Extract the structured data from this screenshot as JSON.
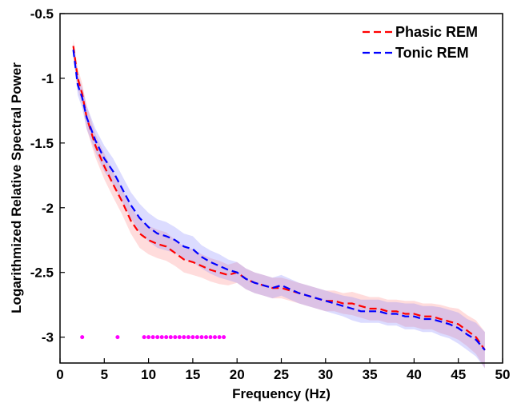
{
  "chart_data": {
    "type": "line",
    "title": "",
    "xlabel": "Frequency (Hz)",
    "ylabel": "Logarithmized Relative Spectral Power",
    "xlim": [
      0,
      50
    ],
    "ylim": [
      -3.2,
      -0.5
    ],
    "xticks": [
      "0",
      "5",
      "10",
      "15",
      "20",
      "25",
      "30",
      "35",
      "40",
      "45",
      "50"
    ],
    "yticks": [
      "-0.5",
      "-1",
      "-1.5",
      "-2",
      "-2.5",
      "-3"
    ],
    "grid": false,
    "legend_position": "top-right",
    "series": [
      {
        "name": "Phasic REM",
        "color": "#ff0000",
        "band_color": "#ff8080",
        "x": [
          1.5,
          2,
          2.5,
          3,
          4,
          5,
          6,
          7,
          8,
          9,
          10,
          11,
          12,
          13,
          14,
          15,
          16,
          17,
          18,
          19,
          20,
          21,
          22,
          23,
          24,
          25,
          26,
          27,
          28,
          29,
          30,
          31,
          32,
          33,
          34,
          35,
          36,
          37,
          38,
          39,
          40,
          41,
          42,
          43,
          44,
          45,
          46,
          47,
          48
        ],
        "y": [
          -0.75,
          -1.0,
          -1.12,
          -1.3,
          -1.52,
          -1.68,
          -1.82,
          -1.95,
          -2.1,
          -2.2,
          -2.25,
          -2.28,
          -2.3,
          -2.35,
          -2.4,
          -2.42,
          -2.45,
          -2.48,
          -2.5,
          -2.52,
          -2.5,
          -2.55,
          -2.58,
          -2.6,
          -2.62,
          -2.62,
          -2.64,
          -2.66,
          -2.68,
          -2.7,
          -2.72,
          -2.72,
          -2.74,
          -2.74,
          -2.76,
          -2.78,
          -2.78,
          -2.8,
          -2.8,
          -2.82,
          -2.82,
          -2.84,
          -2.84,
          -2.86,
          -2.88,
          -2.9,
          -2.95,
          -3.0,
          -3.1
        ],
        "band": [
          0.05,
          0.08,
          0.08,
          0.09,
          0.09,
          0.1,
          0.1,
          0.1,
          0.1,
          0.11,
          0.11,
          0.11,
          0.11,
          0.1,
          0.1,
          0.1,
          0.09,
          0.09,
          0.09,
          0.08,
          0.08,
          0.08,
          0.08,
          0.08,
          0.08,
          0.08,
          0.08,
          0.08,
          0.08,
          0.08,
          0.08,
          0.08,
          0.08,
          0.09,
          0.09,
          0.09,
          0.09,
          0.09,
          0.09,
          0.1,
          0.1,
          0.1,
          0.1,
          0.11,
          0.11,
          0.12,
          0.12,
          0.13,
          0.14
        ]
      },
      {
        "name": "Tonic REM",
        "color": "#0000ff",
        "band_color": "#8080ff",
        "x": [
          1.5,
          2,
          2.5,
          3,
          4,
          5,
          6,
          7,
          8,
          9,
          10,
          11,
          12,
          13,
          14,
          15,
          16,
          17,
          18,
          19,
          20,
          21,
          22,
          23,
          24,
          25,
          26,
          27,
          28,
          29,
          30,
          31,
          32,
          33,
          34,
          35,
          36,
          37,
          38,
          39,
          40,
          41,
          42,
          43,
          44,
          45,
          46,
          47,
          48
        ],
        "y": [
          -0.78,
          -1.05,
          -1.15,
          -1.3,
          -1.48,
          -1.62,
          -1.72,
          -1.85,
          -1.98,
          -2.08,
          -2.15,
          -2.2,
          -2.22,
          -2.25,
          -2.3,
          -2.32,
          -2.38,
          -2.42,
          -2.45,
          -2.48,
          -2.5,
          -2.55,
          -2.58,
          -2.6,
          -2.62,
          -2.6,
          -2.63,
          -2.66,
          -2.68,
          -2.7,
          -2.72,
          -2.74,
          -2.76,
          -2.78,
          -2.8,
          -2.8,
          -2.8,
          -2.82,
          -2.82,
          -2.84,
          -2.84,
          -2.86,
          -2.86,
          -2.88,
          -2.9,
          -2.93,
          -2.98,
          -3.02,
          -3.1
        ],
        "band": [
          0.05,
          0.08,
          0.08,
          0.09,
          0.09,
          0.1,
          0.1,
          0.1,
          0.1,
          0.11,
          0.11,
          0.11,
          0.11,
          0.1,
          0.1,
          0.1,
          0.09,
          0.09,
          0.09,
          0.08,
          0.08,
          0.08,
          0.08,
          0.08,
          0.08,
          0.08,
          0.08,
          0.08,
          0.08,
          0.08,
          0.08,
          0.08,
          0.08,
          0.09,
          0.09,
          0.09,
          0.09,
          0.09,
          0.09,
          0.1,
          0.1,
          0.1,
          0.1,
          0.11,
          0.11,
          0.12,
          0.12,
          0.13,
          0.14
        ]
      }
    ],
    "significance_markers": {
      "color": "#ff00ff",
      "y": -3.0,
      "x": [
        2.5,
        6.5,
        9.5,
        10,
        10.5,
        11,
        11.5,
        12,
        12.5,
        13,
        13.5,
        14,
        14.5,
        15,
        15.5,
        16,
        16.5,
        17,
        17.5,
        18,
        18.5
      ]
    }
  }
}
